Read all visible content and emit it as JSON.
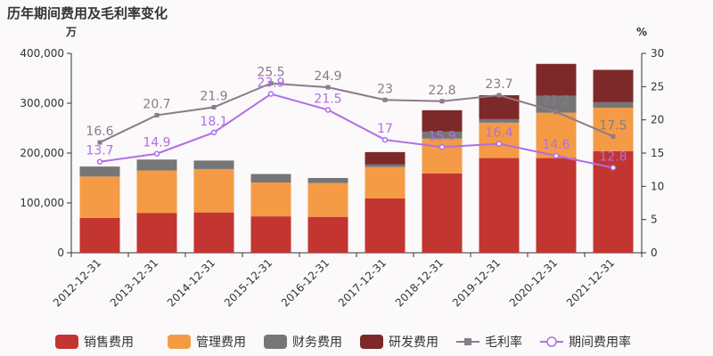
{
  "chart_data": {
    "type": "bar",
    "title": "历年期间费用及毛利率变化",
    "y_left_unit": "万",
    "y_right_unit": "%",
    "ylim_left": [
      0,
      400000
    ],
    "ylim_right": [
      0,
      30
    ],
    "y_left_ticks": [
      "0",
      "100,000",
      "200,000",
      "300,000",
      "400,000"
    ],
    "y_right_ticks": [
      "0",
      "5",
      "10",
      "15",
      "20",
      "25",
      "30"
    ],
    "categories": [
      "2012-12-31",
      "2013-12-31",
      "2014-12-31",
      "2015-12-31",
      "2016-12-31",
      "2017-12-31",
      "2018-12-31",
      "2019-12-31",
      "2020-12-31",
      "2021-12-31"
    ],
    "stacked": true,
    "grid": false,
    "legend_position": "bottom",
    "series": [
      {
        "name": "销售费用",
        "color": "#c23531",
        "axis": "left",
        "values": [
          70000,
          80000,
          81000,
          73000,
          72000,
          109000,
          159000,
          190000,
          190000,
          204000
        ]
      },
      {
        "name": "管理费用",
        "color": "#f59a45",
        "axis": "left",
        "values": [
          83000,
          85000,
          87000,
          68000,
          68000,
          63000,
          70000,
          71000,
          91000,
          87000
        ]
      },
      {
        "name": "财务费用",
        "color": "#767676",
        "axis": "left",
        "values": [
          20000,
          22000,
          17000,
          17000,
          10000,
          5000,
          14000,
          7000,
          34000,
          11000
        ]
      },
      {
        "name": "研发费用",
        "color": "#7e2929",
        "axis": "left",
        "values": [
          0,
          0,
          0,
          0,
          0,
          25000,
          43000,
          48000,
          64000,
          65000
        ]
      },
      {
        "name": "毛利率",
        "type": "line",
        "color": "#8b7b8b",
        "marker": "square",
        "axis": "right",
        "values": [
          16.6,
          20.7,
          21.9,
          25.5,
          24.9,
          23,
          22.8,
          23.7,
          21.2,
          17.5
        ],
        "labels": [
          "16.6",
          "20.7",
          "21.9",
          "25.5",
          "24.9",
          "23",
          "22.8",
          "23.7",
          "21.2",
          "17.5"
        ]
      },
      {
        "name": "期间费用率",
        "type": "line",
        "color": "#b06ee6",
        "marker": "circle",
        "axis": "right",
        "values": [
          13.7,
          14.9,
          18.1,
          23.9,
          21.5,
          17,
          15.9,
          16.4,
          14.6,
          12.8
        ],
        "labels": [
          "13.7",
          "14.9",
          "18.1",
          "23.9",
          "21.5",
          "17",
          "15.9",
          "16.4",
          "14.6",
          "12.8"
        ]
      }
    ]
  }
}
